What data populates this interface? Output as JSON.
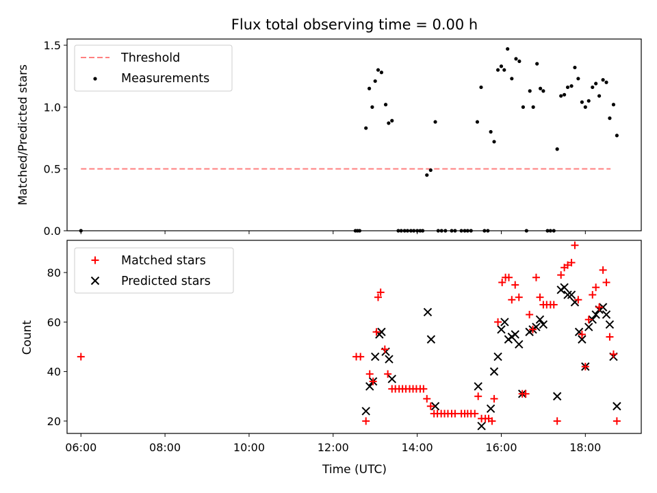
{
  "chart_data": [
    {
      "type": "scatter",
      "title": "Flux total observing time = 0.00 h",
      "xlabel": "",
      "ylabel": "Matched/Predicted stars",
      "ylim": [
        0,
        1.55
      ],
      "yticks": [
        0.0,
        0.5,
        1.0,
        1.5
      ],
      "ytick_labels": [
        "0.0",
        "0.5",
        "1.0",
        "1.5"
      ],
      "xlim_hours": [
        5.67,
        19.33
      ],
      "legend": {
        "placement": "top-left",
        "entries": [
          {
            "label": "Threshold",
            "marker": "dashed-line",
            "color": "#ff7f7f"
          },
          {
            "label": "Measurements",
            "marker": "dot",
            "color": "#000000"
          }
        ]
      },
      "threshold": {
        "name": "Threshold",
        "y": 0.5,
        "x_start": 6.0,
        "x_end": 18.6,
        "color": "#ff7f7f"
      },
      "series": [
        {
          "name": "Measurements",
          "color": "#000000",
          "points": [
            [
              6.0,
              0.0
            ],
            [
              12.53,
              0.0
            ],
            [
              12.58,
              0.0
            ],
            [
              12.63,
              0.0
            ],
            [
              12.78,
              0.83
            ],
            [
              12.86,
              1.15
            ],
            [
              12.93,
              1.0
            ],
            [
              13.0,
              1.21
            ],
            [
              13.07,
              1.3
            ],
            [
              13.15,
              1.28
            ],
            [
              13.25,
              1.02
            ],
            [
              13.32,
              0.87
            ],
            [
              13.4,
              0.89
            ],
            [
              13.55,
              0.0
            ],
            [
              13.62,
              0.0
            ],
            [
              13.7,
              0.0
            ],
            [
              13.77,
              0.0
            ],
            [
              13.85,
              0.0
            ],
            [
              13.92,
              0.0
            ],
            [
              14.0,
              0.0
            ],
            [
              14.07,
              0.0
            ],
            [
              14.13,
              0.0
            ],
            [
              14.23,
              0.45
            ],
            [
              14.32,
              0.49
            ],
            [
              14.43,
              0.88
            ],
            [
              14.5,
              0.0
            ],
            [
              14.58,
              0.0
            ],
            [
              14.67,
              0.0
            ],
            [
              14.82,
              0.0
            ],
            [
              14.9,
              0.0
            ],
            [
              15.05,
              0.0
            ],
            [
              15.13,
              0.0
            ],
            [
              15.2,
              0.0
            ],
            [
              15.28,
              0.0
            ],
            [
              15.43,
              0.88
            ],
            [
              15.52,
              1.16
            ],
            [
              15.6,
              0.0
            ],
            [
              15.68,
              0.0
            ],
            [
              15.75,
              0.8
            ],
            [
              15.83,
              0.72
            ],
            [
              15.92,
              1.3
            ],
            [
              16.0,
              1.33
            ],
            [
              16.07,
              1.3
            ],
            [
              16.15,
              1.47
            ],
            [
              16.25,
              1.23
            ],
            [
              16.35,
              1.39
            ],
            [
              16.43,
              1.37
            ],
            [
              16.52,
              1.0
            ],
            [
              16.6,
              0.0
            ],
            [
              16.68,
              1.13
            ],
            [
              16.76,
              1.0
            ],
            [
              16.85,
              1.35
            ],
            [
              16.93,
              1.15
            ],
            [
              17.0,
              1.13
            ],
            [
              17.1,
              0.0
            ],
            [
              17.17,
              0.0
            ],
            [
              17.25,
              0.0
            ],
            [
              17.33,
              0.66
            ],
            [
              17.42,
              1.09
            ],
            [
              17.5,
              1.1
            ],
            [
              17.58,
              1.16
            ],
            [
              17.67,
              1.17
            ],
            [
              17.75,
              1.32
            ],
            [
              17.83,
              1.23
            ],
            [
              17.92,
              1.04
            ],
            [
              18.0,
              1.0
            ],
            [
              18.08,
              1.05
            ],
            [
              18.17,
              1.16
            ],
            [
              18.25,
              1.19
            ],
            [
              18.33,
              1.09
            ],
            [
              18.42,
              1.22
            ],
            [
              18.5,
              1.2
            ],
            [
              18.58,
              0.91
            ],
            [
              18.67,
              1.02
            ],
            [
              18.75,
              0.77
            ]
          ]
        }
      ]
    },
    {
      "type": "scatter",
      "title": "",
      "xlabel": "Time (UTC)",
      "ylabel": "Count",
      "ylim": [
        15,
        93
      ],
      "yticks": [
        20,
        40,
        60,
        80
      ],
      "ytick_labels": [
        "20",
        "40",
        "60",
        "80"
      ],
      "xlim_hours": [
        5.67,
        19.33
      ],
      "xticks_hours": [
        6,
        8,
        10,
        12,
        14,
        16,
        18
      ],
      "xtick_labels": [
        "06:00",
        "08:00",
        "10:00",
        "12:00",
        "14:00",
        "16:00",
        "18:00"
      ],
      "legend": {
        "placement": "top-left",
        "entries": [
          {
            "label": "Matched stars",
            "marker": "plus",
            "color": "#ff0000"
          },
          {
            "label": "Predicted stars",
            "marker": "x",
            "color": "#000000"
          }
        ]
      },
      "series": [
        {
          "name": "Matched stars",
          "color": "#ff0000",
          "marker": "plus",
          "points": [
            [
              6.0,
              46
            ],
            [
              12.55,
              46
            ],
            [
              12.65,
              46
            ],
            [
              12.78,
              20
            ],
            [
              12.87,
              39
            ],
            [
              12.95,
              36
            ],
            [
              13.03,
              56
            ],
            [
              13.07,
              70
            ],
            [
              13.13,
              72
            ],
            [
              13.23,
              49
            ],
            [
              13.3,
              39
            ],
            [
              13.4,
              33
            ],
            [
              13.48,
              33
            ],
            [
              13.57,
              33
            ],
            [
              13.65,
              33
            ],
            [
              13.73,
              33
            ],
            [
              13.82,
              33
            ],
            [
              13.9,
              33
            ],
            [
              13.98,
              33
            ],
            [
              14.07,
              33
            ],
            [
              14.15,
              33
            ],
            [
              14.23,
              29
            ],
            [
              14.32,
              26
            ],
            [
              14.4,
              23
            ],
            [
              14.48,
              23
            ],
            [
              14.57,
              23
            ],
            [
              14.65,
              23
            ],
            [
              14.73,
              23
            ],
            [
              14.82,
              23
            ],
            [
              14.9,
              23
            ],
            [
              15.05,
              23
            ],
            [
              15.13,
              23
            ],
            [
              15.2,
              23
            ],
            [
              15.28,
              23
            ],
            [
              15.37,
              23
            ],
            [
              15.45,
              30
            ],
            [
              15.53,
              21
            ],
            [
              15.62,
              21
            ],
            [
              15.7,
              21
            ],
            [
              15.78,
              20
            ],
            [
              15.83,
              29
            ],
            [
              15.92,
              60
            ],
            [
              16.02,
              76
            ],
            [
              16.1,
              78
            ],
            [
              16.18,
              78
            ],
            [
              16.25,
              69
            ],
            [
              16.33,
              75
            ],
            [
              16.42,
              70
            ],
            [
              16.5,
              31
            ],
            [
              16.58,
              31
            ],
            [
              16.67,
              63
            ],
            [
              16.75,
              57
            ],
            [
              16.83,
              78
            ],
            [
              16.92,
              70
            ],
            [
              17.0,
              67
            ],
            [
              17.08,
              67
            ],
            [
              17.17,
              67
            ],
            [
              17.25,
              67
            ],
            [
              17.33,
              20
            ],
            [
              17.42,
              79
            ],
            [
              17.5,
              82
            ],
            [
              17.58,
              83
            ],
            [
              17.67,
              84
            ],
            [
              17.75,
              91
            ],
            [
              17.83,
              69
            ],
            [
              17.92,
              55
            ],
            [
              18.0,
              42
            ],
            [
              18.08,
              61
            ],
            [
              18.17,
              71
            ],
            [
              18.25,
              74
            ],
            [
              18.33,
              66
            ],
            [
              18.42,
              81
            ],
            [
              18.5,
              76
            ],
            [
              18.58,
              54
            ],
            [
              18.67,
              47
            ],
            [
              18.75,
              20
            ]
          ]
        },
        {
          "name": "Predicted stars",
          "color": "#000000",
          "marker": "x",
          "points": [
            [
              12.78,
              24
            ],
            [
              12.87,
              34
            ],
            [
              12.95,
              36
            ],
            [
              13.0,
              46
            ],
            [
              13.1,
              55
            ],
            [
              13.15,
              56
            ],
            [
              13.25,
              48
            ],
            [
              13.33,
              45
            ],
            [
              13.4,
              37
            ],
            [
              14.25,
              64
            ],
            [
              14.33,
              53
            ],
            [
              14.43,
              26
            ],
            [
              15.45,
              34
            ],
            [
              15.53,
              18
            ],
            [
              15.75,
              25
            ],
            [
              15.83,
              40
            ],
            [
              15.92,
              46
            ],
            [
              16.0,
              57
            ],
            [
              16.08,
              60
            ],
            [
              16.17,
              53
            ],
            [
              16.25,
              54
            ],
            [
              16.33,
              55
            ],
            [
              16.42,
              51
            ],
            [
              16.5,
              31
            ],
            [
              16.67,
              56
            ],
            [
              16.75,
              57
            ],
            [
              16.83,
              58
            ],
            [
              16.92,
              61
            ],
            [
              17.0,
              59
            ],
            [
              17.33,
              30
            ],
            [
              17.42,
              73
            ],
            [
              17.5,
              74
            ],
            [
              17.58,
              71
            ],
            [
              17.67,
              71
            ],
            [
              17.75,
              68
            ],
            [
              17.85,
              56
            ],
            [
              17.92,
              53
            ],
            [
              18.0,
              42
            ],
            [
              18.08,
              58
            ],
            [
              18.17,
              61
            ],
            [
              18.25,
              63
            ],
            [
              18.33,
              65
            ],
            [
              18.42,
              66
            ],
            [
              18.5,
              63
            ],
            [
              18.58,
              59
            ],
            [
              18.67,
              46
            ],
            [
              18.75,
              26
            ]
          ]
        }
      ]
    }
  ]
}
